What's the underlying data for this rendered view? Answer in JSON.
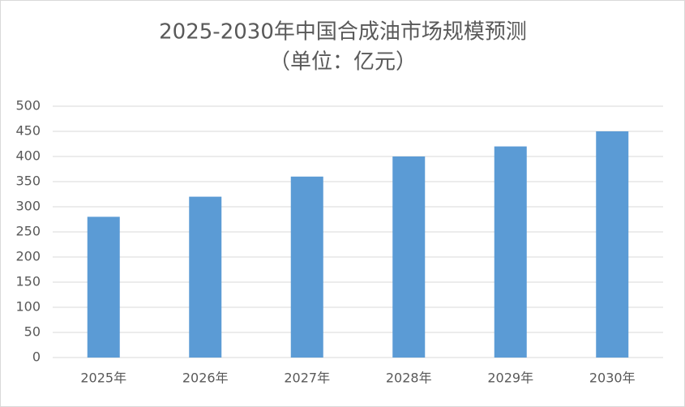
{
  "chart_data": {
    "type": "bar",
    "title": "2025-2030年中国合成油市场规模预测",
    "subtitle": "（单位：亿元）",
    "categories": [
      "2025年",
      "2026年",
      "2027年",
      "2028年",
      "2029年",
      "2030年"
    ],
    "values": [
      280,
      320,
      360,
      400,
      420,
      450
    ],
    "color": "#5b9bd5",
    "ylim": [
      0,
      500
    ],
    "yticks": [
      0,
      50,
      100,
      150,
      200,
      250,
      300,
      350,
      400,
      450,
      500
    ],
    "grid": true
  }
}
